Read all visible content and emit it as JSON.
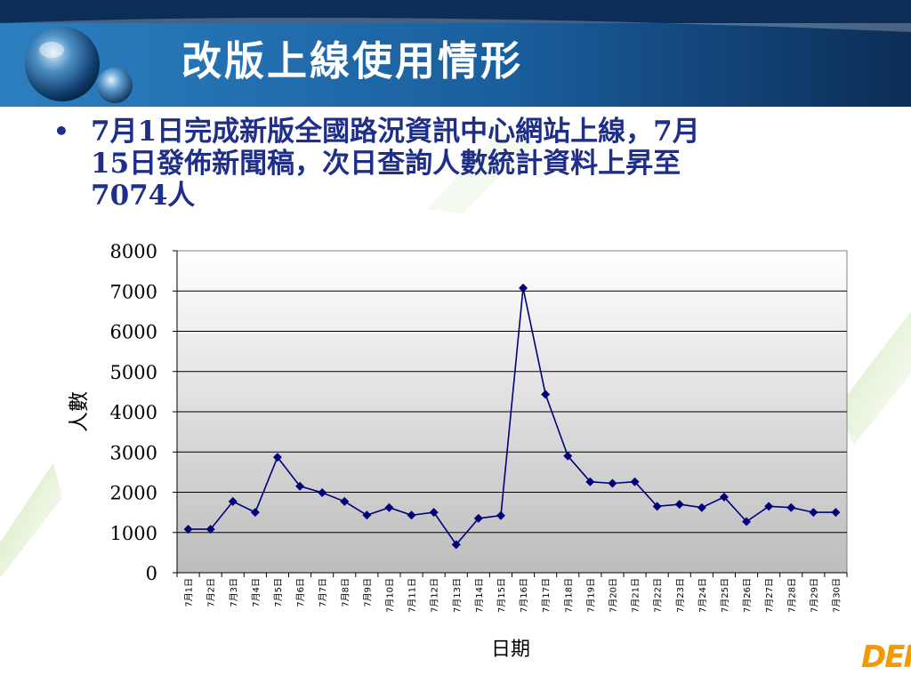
{
  "slide": {
    "title": "改版上線使用情形",
    "bullet_lines": [
      "7月1日完成新版全國路況資訊中心網站上線，7月",
      "15日發佈新聞稿，次日查詢人數統計資料上昇至",
      "7074人"
    ],
    "brand_logo_text": "DER"
  },
  "colors": {
    "title_bar": "#1a5f9e",
    "title_bar_dark": "#0c2d57",
    "bullet_text": "#1f2f88",
    "series_line": "#00007a",
    "marker": "#00007a",
    "plot_bg_top": "#ffffff",
    "plot_bg_bottom": "#bdbdbd",
    "accent_green": "#8bc34a",
    "logo_orange": "#f39a00"
  },
  "chart_data": {
    "type": "line",
    "xlabel": "日期",
    "ylabel": "人數",
    "ylim": [
      0,
      8000
    ],
    "yticks": [
      "0",
      "1000",
      "2000",
      "3000",
      "4000",
      "5000",
      "6000",
      "7000",
      "8000"
    ],
    "grid": true,
    "legend": "none",
    "categories": [
      "7月1日",
      "7月2日",
      "7月3日",
      "7月4日",
      "7月5日",
      "7月6日",
      "7月7日",
      "7月8日",
      "7月9日",
      "7月10日",
      "7月11日",
      "7月12日",
      "7月13日",
      "7月14日",
      "7月15日",
      "7月16日",
      "7月17日",
      "7月18日",
      "7月19日",
      "7月20日",
      "7月21日",
      "7月22日",
      "7月23日",
      "7月24日",
      "7月25日",
      "7月26日",
      "7月27日",
      "7月28日",
      "7月29日",
      "7月30日"
    ],
    "series": [
      {
        "values": [
          1080,
          1080,
          1770,
          1500,
          2870,
          2150,
          1990,
          1770,
          1430,
          1620,
          1430,
          1500,
          700,
          1350,
          1420,
          7074,
          4430,
          2900,
          2260,
          2220,
          2260,
          1650,
          1700,
          1620,
          1880,
          1270,
          1650,
          1620,
          1500,
          1500
        ]
      }
    ]
  }
}
